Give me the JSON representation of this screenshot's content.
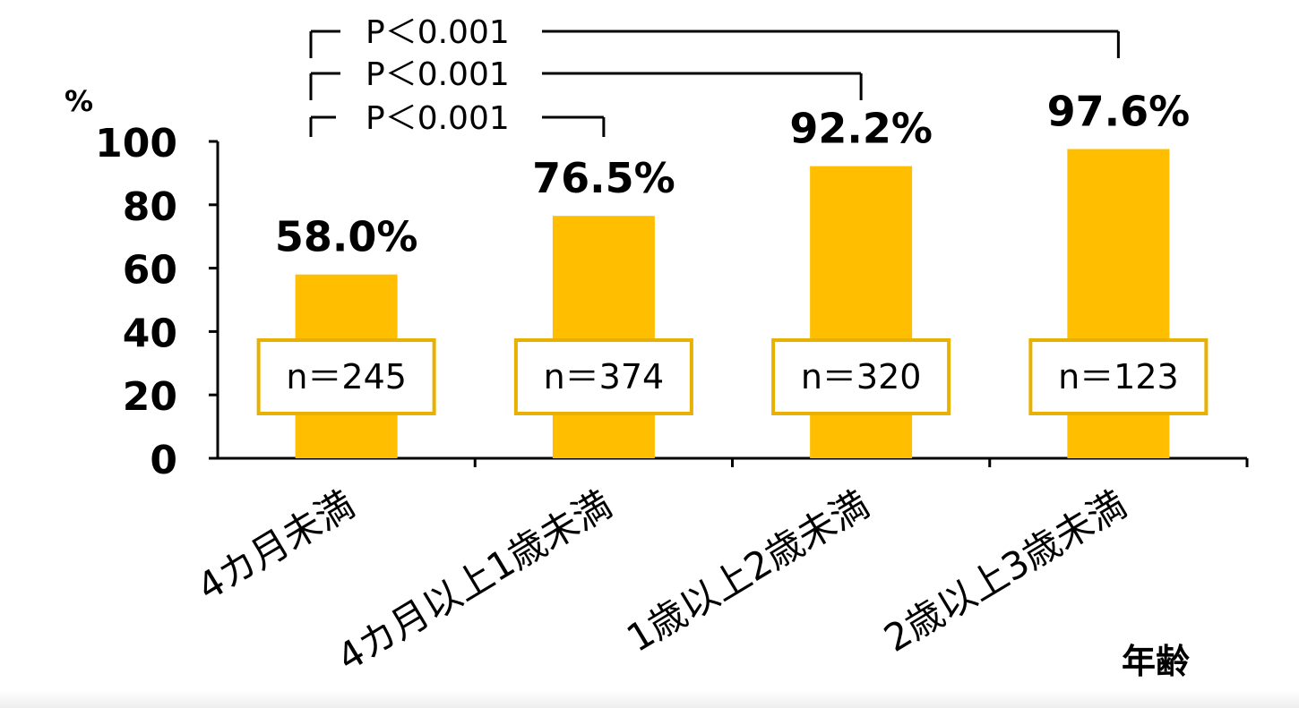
{
  "chart_data": {
    "type": "bar",
    "ylabel": "%",
    "xlabel": "年齢",
    "ylim": [
      0,
      100
    ],
    "yticks": [
      "0",
      "20",
      "40",
      "60",
      "80",
      "100"
    ],
    "categories": [
      "4カ月未満",
      "4カ月以上1歳未満",
      "1歳以上2歳未満",
      "2歳以上3歳未満"
    ],
    "values": [
      58.0,
      76.5,
      92.2,
      97.6
    ],
    "value_labels": [
      "58.0%",
      "76.5%",
      "92.2%",
      "97.6%"
    ],
    "n_labels": [
      "n＝245",
      "n＝374",
      "n＝320",
      "n＝123"
    ],
    "significance": [
      {
        "label": "P＜0.001",
        "from": 0,
        "to": 1
      },
      {
        "label": "P＜0.001",
        "from": 0,
        "to": 2
      },
      {
        "label": "P＜0.001",
        "from": 0,
        "to": 3
      }
    ],
    "colors": {
      "bar": "#FFBE00",
      "box_border": "#E8B000",
      "axis": "#000000"
    }
  }
}
